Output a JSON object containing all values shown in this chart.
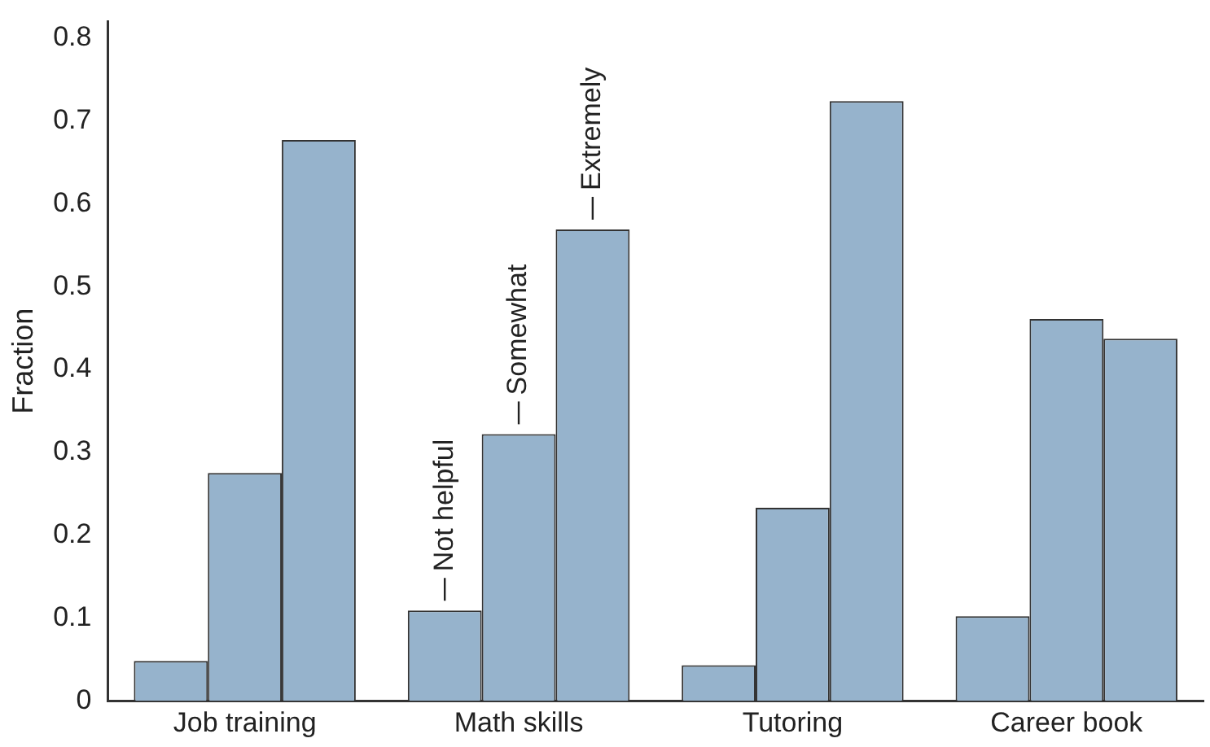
{
  "chart_data": {
    "type": "bar",
    "ylabel": "Fraction",
    "categories": [
      "Job training",
      "Math skills",
      "Tutoring",
      "Career book"
    ],
    "series": [
      {
        "name": "Not helpful",
        "color": "#96b3cc",
        "values": [
          0.048,
          0.109,
          0.043,
          0.102
        ]
      },
      {
        "name": "Somewhat",
        "color": "#96b3cc",
        "values": [
          0.275,
          0.322,
          0.233,
          0.461
        ]
      },
      {
        "name": "Extremely",
        "color": "#96b3cc",
        "values": [
          0.677,
          0.569,
          0.724,
          0.437
        ]
      }
    ],
    "ylim": [
      0,
      0.82
    ],
    "yticks": [
      0,
      0.1,
      0.2,
      0.3,
      0.4,
      0.5,
      0.6,
      0.7,
      0.8
    ],
    "grid": false,
    "legend": false
  }
}
